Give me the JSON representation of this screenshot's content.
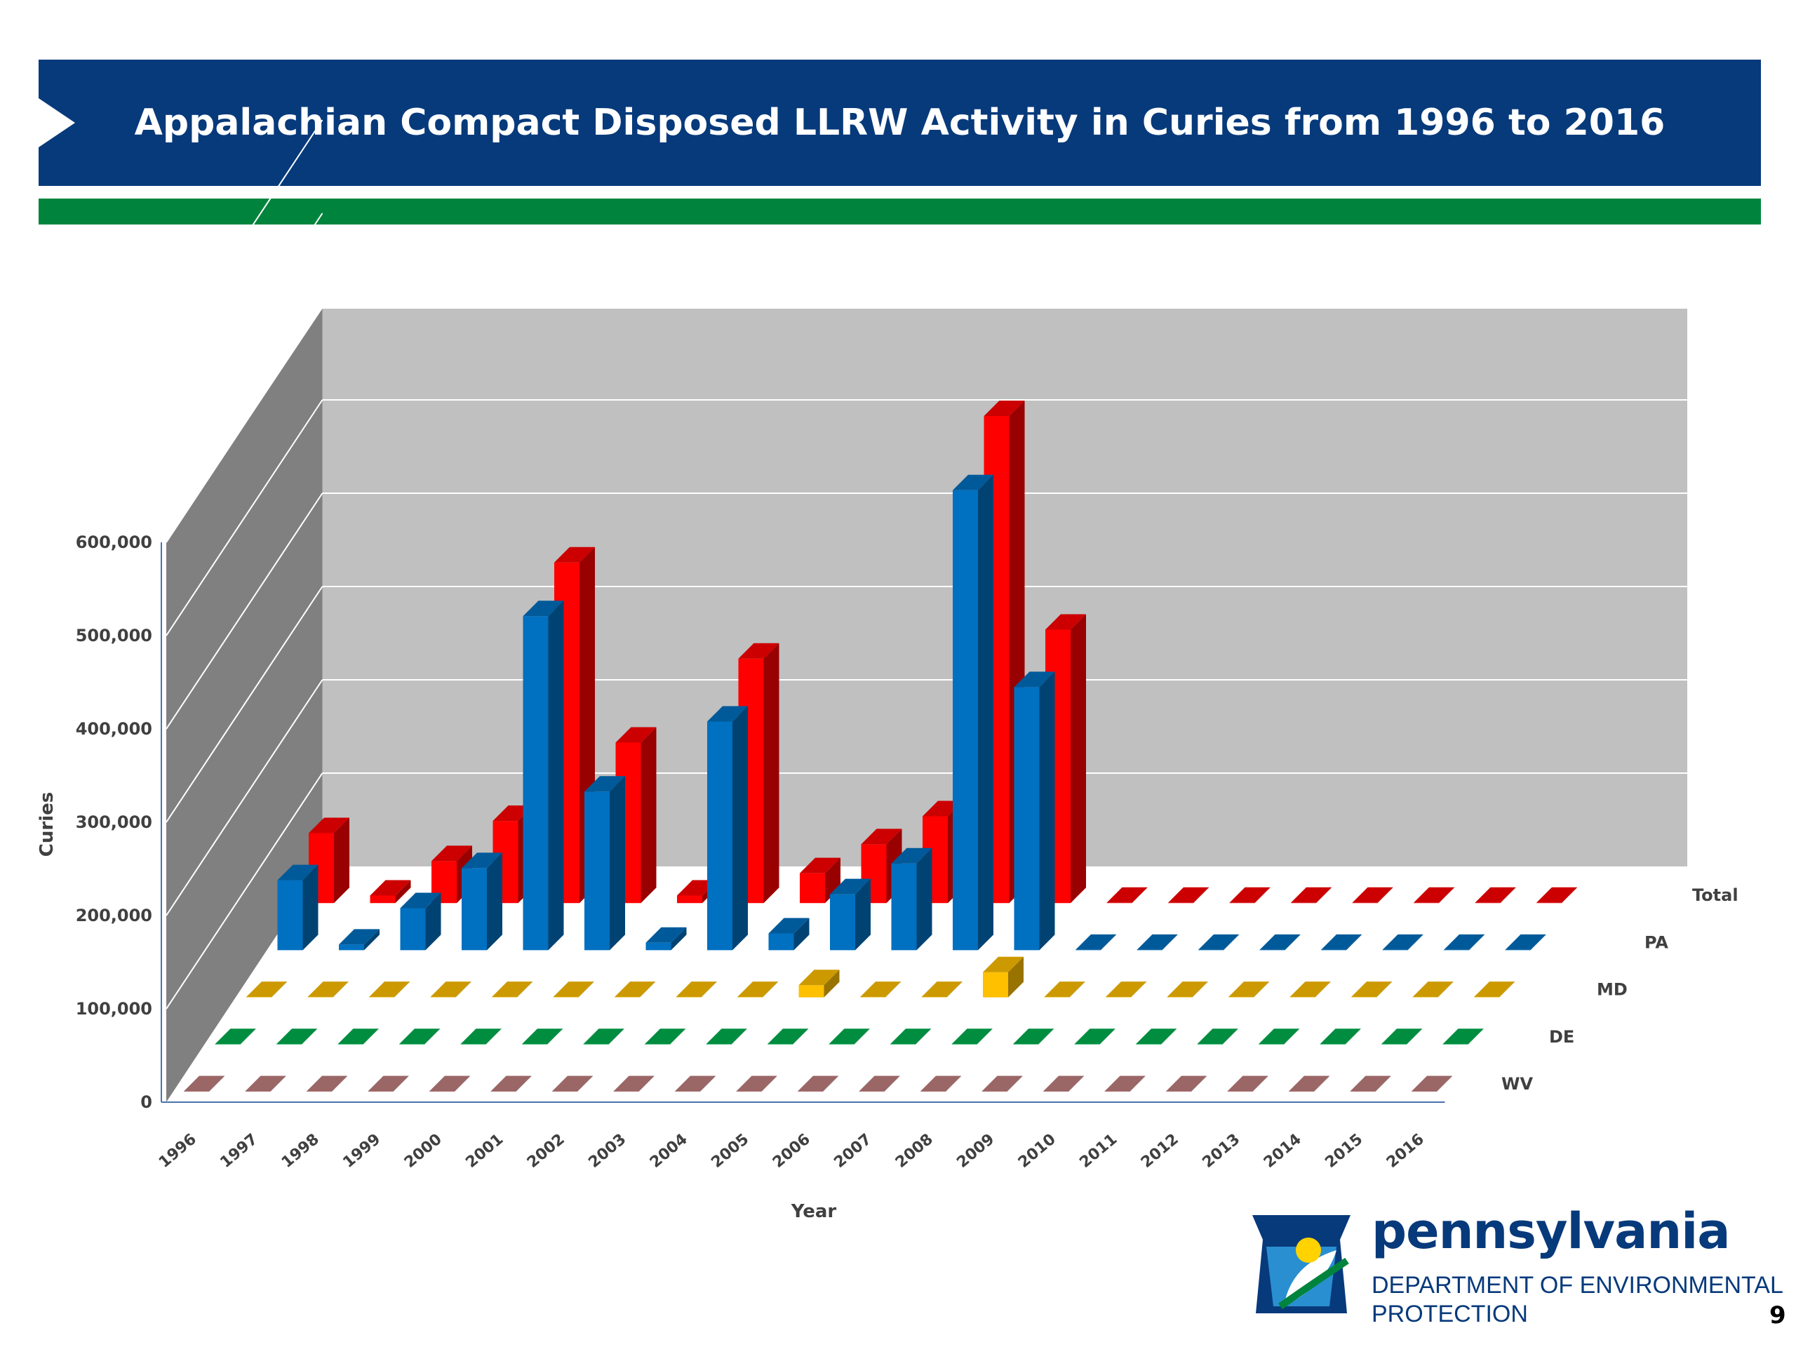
{
  "title": "Appalachian Compact Disposed LLRW Activity in Curies from 1996 to 2016",
  "logo": {
    "word": "pennsylvania",
    "dept_line1": "DEPARTMENT OF ENVIRONMENTAL",
    "dept_line2": "PROTECTION"
  },
  "page_number": "9",
  "colors": {
    "banner": "#073a7b",
    "accent_stripe": "#00843d",
    "wall_back": "#c0c0c0",
    "wall_side": "#808080",
    "Total": "#ff0000",
    "PA": "#0070c0",
    "MD": "#ffc000",
    "DE": "#00b050",
    "WV": "#c08080"
  },
  "chart_data": {
    "type": "bar",
    "subtype": "3d-column",
    "title": "",
    "xlabel": "Year",
    "ylabel": "Curies",
    "ylim": [
      0,
      600000
    ],
    "yticks": [
      0,
      100000,
      200000,
      300000,
      400000,
      500000,
      600000
    ],
    "ytick_labels": [
      "0",
      "100,000",
      "200,000",
      "300,000",
      "400,000",
      "500,000",
      "600,000"
    ],
    "grid": true,
    "legend": "series labels at right end of each row",
    "categories": [
      "1996",
      "1997",
      "1998",
      "1999",
      "2000",
      "2001",
      "2002",
      "2003",
      "2004",
      "2005",
      "2006",
      "2007",
      "2008",
      "2009",
      "2010",
      "2011",
      "2012",
      "2013",
      "2014",
      "2015",
      "2016"
    ],
    "series": [
      {
        "name": "WV",
        "values": [
          0,
          0,
          0,
          0,
          0,
          0,
          0,
          0,
          0,
          0,
          0,
          0,
          0,
          0,
          0,
          0,
          0,
          0,
          0,
          0,
          0
        ]
      },
      {
        "name": "DE",
        "values": [
          0,
          0,
          0,
          0,
          0,
          0,
          0,
          0,
          0,
          0,
          0,
          0,
          0,
          0,
          0,
          0,
          0,
          0,
          0,
          0,
          0
        ]
      },
      {
        "name": "MD",
        "values": [
          0,
          0,
          0,
          0,
          0,
          0,
          0,
          0,
          0,
          13000,
          0,
          0,
          27000,
          0,
          0,
          0,
          0,
          0,
          0,
          0,
          0
        ]
      },
      {
        "name": "PA",
        "values": [
          75000,
          6000,
          45000,
          88000,
          358000,
          170000,
          8000,
          245000,
          18000,
          60000,
          93000,
          493000,
          282000,
          0,
          0,
          0,
          0,
          0,
          0,
          0,
          0
        ]
      },
      {
        "name": "Total",
        "values": [
          75000,
          8000,
          45000,
          88000,
          365000,
          172000,
          8000,
          262000,
          32000,
          63000,
          93000,
          522000,
          293000,
          0,
          0,
          0,
          0,
          0,
          0,
          0,
          0
        ]
      }
    ]
  }
}
